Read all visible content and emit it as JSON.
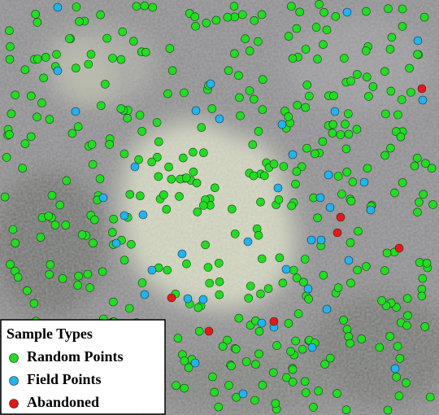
{
  "legend": {
    "title": "Sample Types",
    "items": [
      {
        "label": "Random Points",
        "color": "#22dd22"
      },
      {
        "label": "Field Points",
        "color": "#22b4ee"
      },
      {
        "label": "Abandoned",
        "color": "#e61919"
      }
    ]
  }
}
